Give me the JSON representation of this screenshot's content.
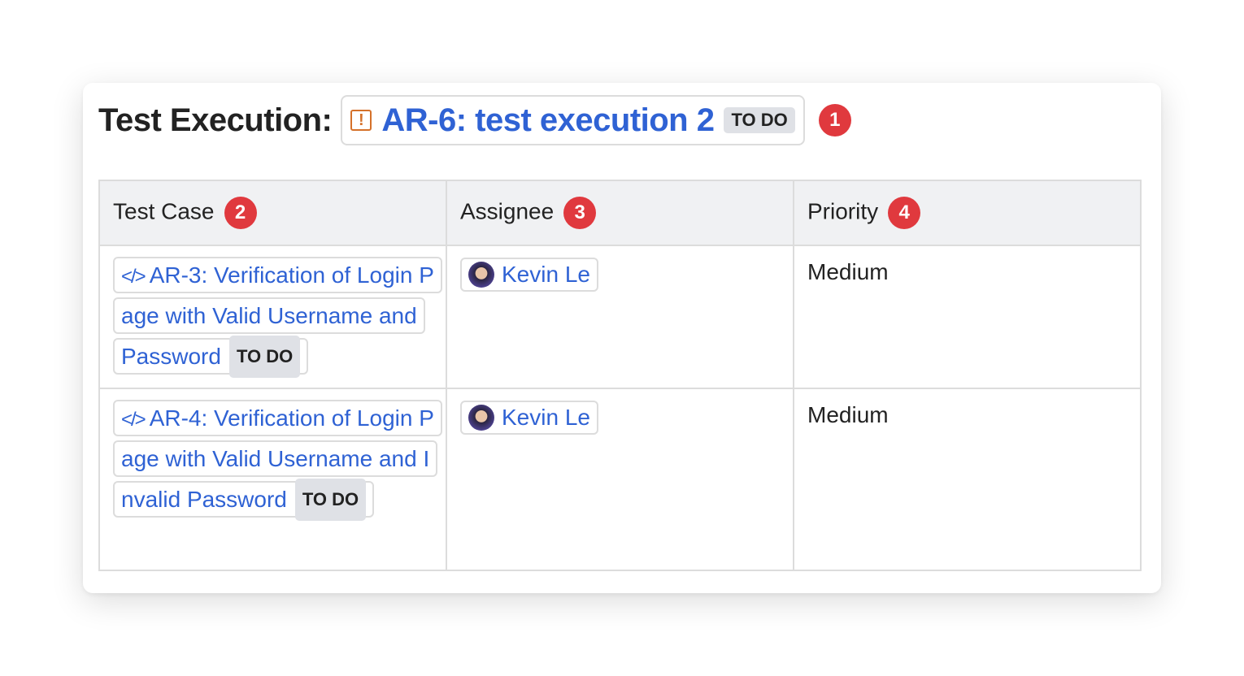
{
  "header": {
    "label": "Test Execution:",
    "execution": {
      "icon": "warning-icon",
      "key_title": "AR-6: test execution 2",
      "status": "TO DO"
    },
    "badge": "1"
  },
  "table": {
    "columns": [
      {
        "label": "Test Case",
        "badge": "2"
      },
      {
        "label": "Assignee",
        "badge": "3"
      },
      {
        "label": "Priority",
        "badge": "4"
      }
    ],
    "rows": [
      {
        "test_case": "AR-3: Verification of Login Page with Valid Username and Password",
        "status": "TO DO",
        "assignee": "Kevin Le",
        "priority": "Medium"
      },
      {
        "test_case": "AR-4: Verification of Login Page with Valid Username and Invalid Password",
        "status": "TO DO",
        "assignee": "Kevin Le",
        "priority": "Medium"
      }
    ]
  },
  "colors": {
    "link": "#2f62d4",
    "badge": "#e0393e",
    "warning": "#d5712a"
  }
}
